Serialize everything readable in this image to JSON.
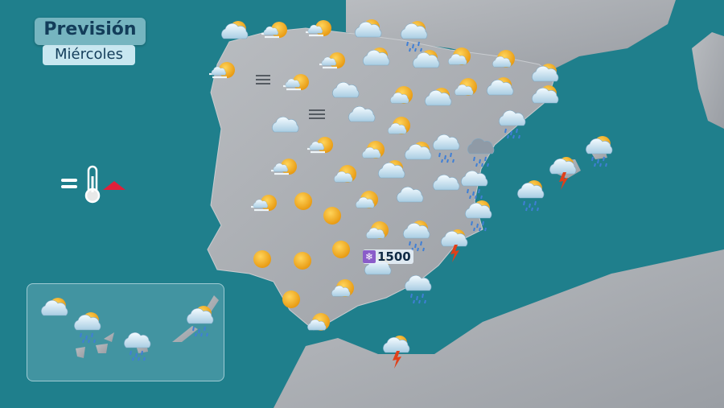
{
  "header": {
    "title": "Previsión",
    "day": "Miércoles"
  },
  "legend": {
    "temperature_trend": "stable-rising",
    "icon": "thermometer-icon",
    "indicator_color": "#e0203a"
  },
  "snow_level": {
    "icon": "snowflake-icon",
    "value": "1500"
  },
  "colors": {
    "sea": "#1f7f8c",
    "land": "#a9adb2",
    "sun": "#f2b21f",
    "cloud": "#dfeef6",
    "rain": "#3f7fd6",
    "bolt": "#e0401a"
  },
  "peninsula_icons": [
    "cloud-sun",
    "fog-sun",
    "fog-sun",
    "cloud-sun",
    "rain-cloud-sun",
    "fog-sun",
    "fog-sun",
    "cloud-sun",
    "cloud-sun",
    "sun-cloud",
    "sun-cloud",
    "cloud-sun",
    "fog-sun",
    "cloud",
    "sun-cloud",
    "cloud-sun",
    "sun-cloud",
    "cloud-sun",
    "cloud-sun",
    "cloud",
    "cloud",
    "sun-cloud",
    "rain-cloud",
    "fog-sun",
    "sun-cloud",
    "cloud-sun",
    "rain-cloud",
    "rain-dark-cloud",
    "rain-cloud-sun",
    "fog-sun",
    "sun-cloud",
    "cloud-sun",
    "cloud",
    "rain-cloud",
    "storm",
    "rain-cloud-sun",
    "fog-sun",
    "sun",
    "sun-cloud",
    "cloud",
    "sun",
    "rain-cloud-sun",
    "sun-cloud",
    "rain-cloud-sun",
    "storm",
    "sun",
    "sun",
    "sun",
    "cloud-sun",
    "rain-cloud",
    "sun-cloud",
    "sun",
    "sun-cloud",
    "storm"
  ],
  "canarias_icons": [
    "cloud-sun",
    "rain-cloud-sun",
    "rain-cloud",
    "rain-cloud-sun"
  ]
}
